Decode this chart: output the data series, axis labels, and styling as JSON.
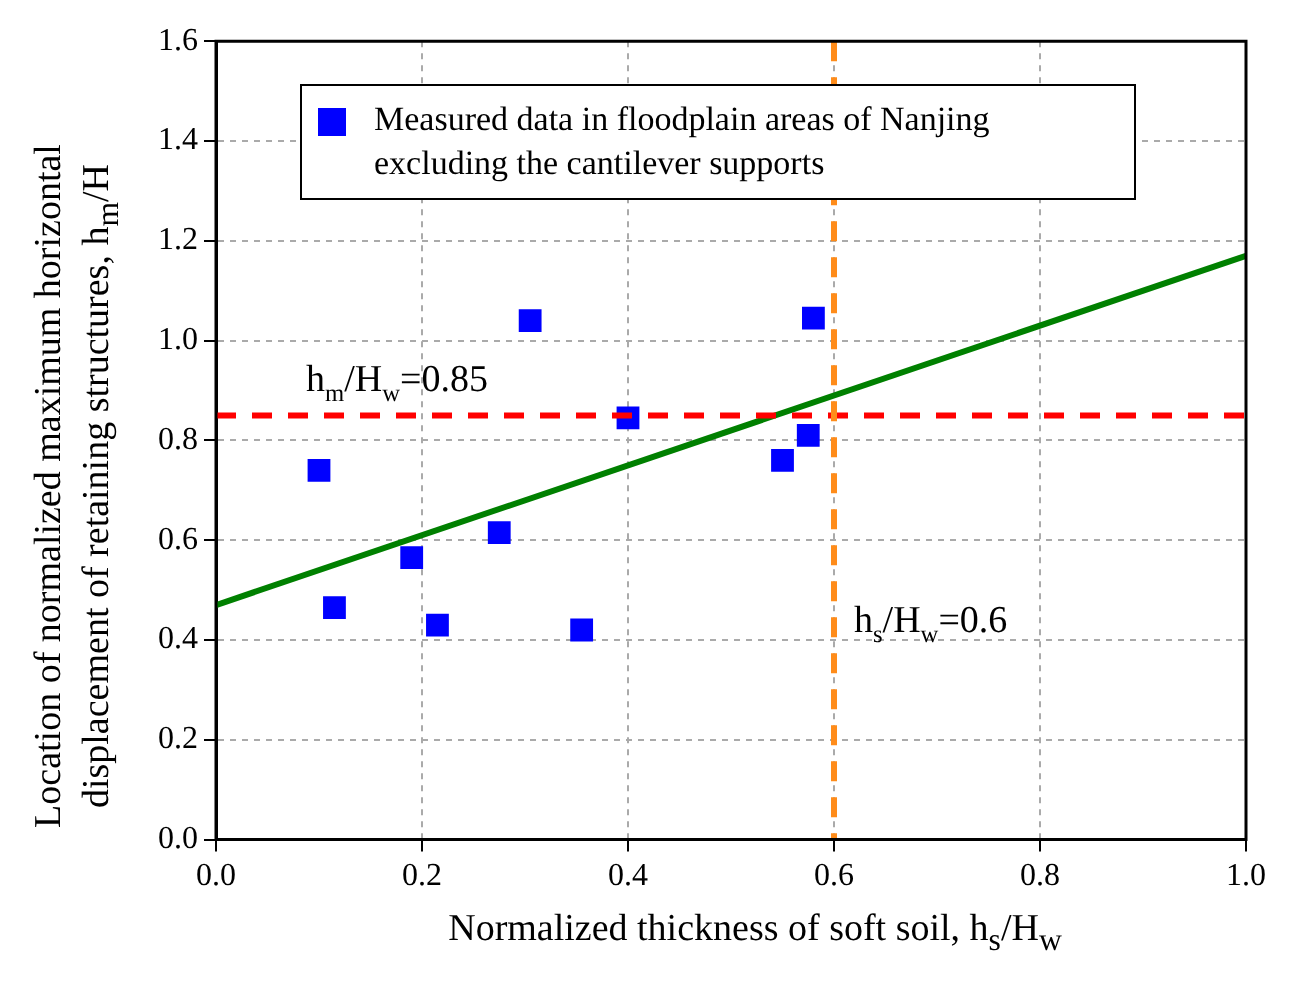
{
  "chart_data": {
    "type": "scatter",
    "xlabel": "Normalized thickness of soft soil, h$_{s}$/H$_{w}$",
    "ylabel": "Location of normalized maximum horizontal displacement of retaining structures, h$_{m}$/H",
    "series": [
      {
        "name": "Measured data in floodplain areas of Nanjing excluding the cantilever supports",
        "color": "#0000ff",
        "marker": "square",
        "x": [
          0.1,
          0.115,
          0.19,
          0.215,
          0.275,
          0.305,
          0.355,
          0.4,
          0.55,
          0.575,
          0.58
        ],
        "values": [
          0.74,
          0.465,
          0.565,
          0.43,
          0.615,
          1.04,
          0.42,
          0.845,
          0.76,
          0.81,
          1.045
        ]
      },
      {
        "type": "line",
        "color": "#008000",
        "x": [
          0,
          1
        ],
        "values": [
          0.47,
          1.17
        ]
      }
    ],
    "ref_lines": [
      {
        "axis": "y",
        "value": 0.85,
        "label": "h$_{m}$/H$_{w}$=0.85",
        "color": "#ff0000",
        "line_style": "dashed"
      },
      {
        "axis": "x",
        "value": 0.6,
        "label": "h$_{s}$/H$_{w}$=0.6",
        "color": "#ff8c1a",
        "line_style": "dashed"
      }
    ],
    "xlim": [
      0,
      1
    ],
    "xticks": [
      {
        "value": 0,
        "label": "0.0"
      },
      0.2,
      0.4,
      0.6,
      0.8,
      {
        "value": 1,
        "label": "1.0"
      }
    ],
    "ylim": [
      0,
      1.6
    ],
    "yticks": [
      {
        "value": 0,
        "label": "0.0"
      },
      0.2,
      0.4,
      0.6,
      0.8,
      {
        "value": 1,
        "label": "1.0"
      },
      1.2,
      1.4,
      1.6
    ],
    "grid": true,
    "legend": "top left"
  }
}
